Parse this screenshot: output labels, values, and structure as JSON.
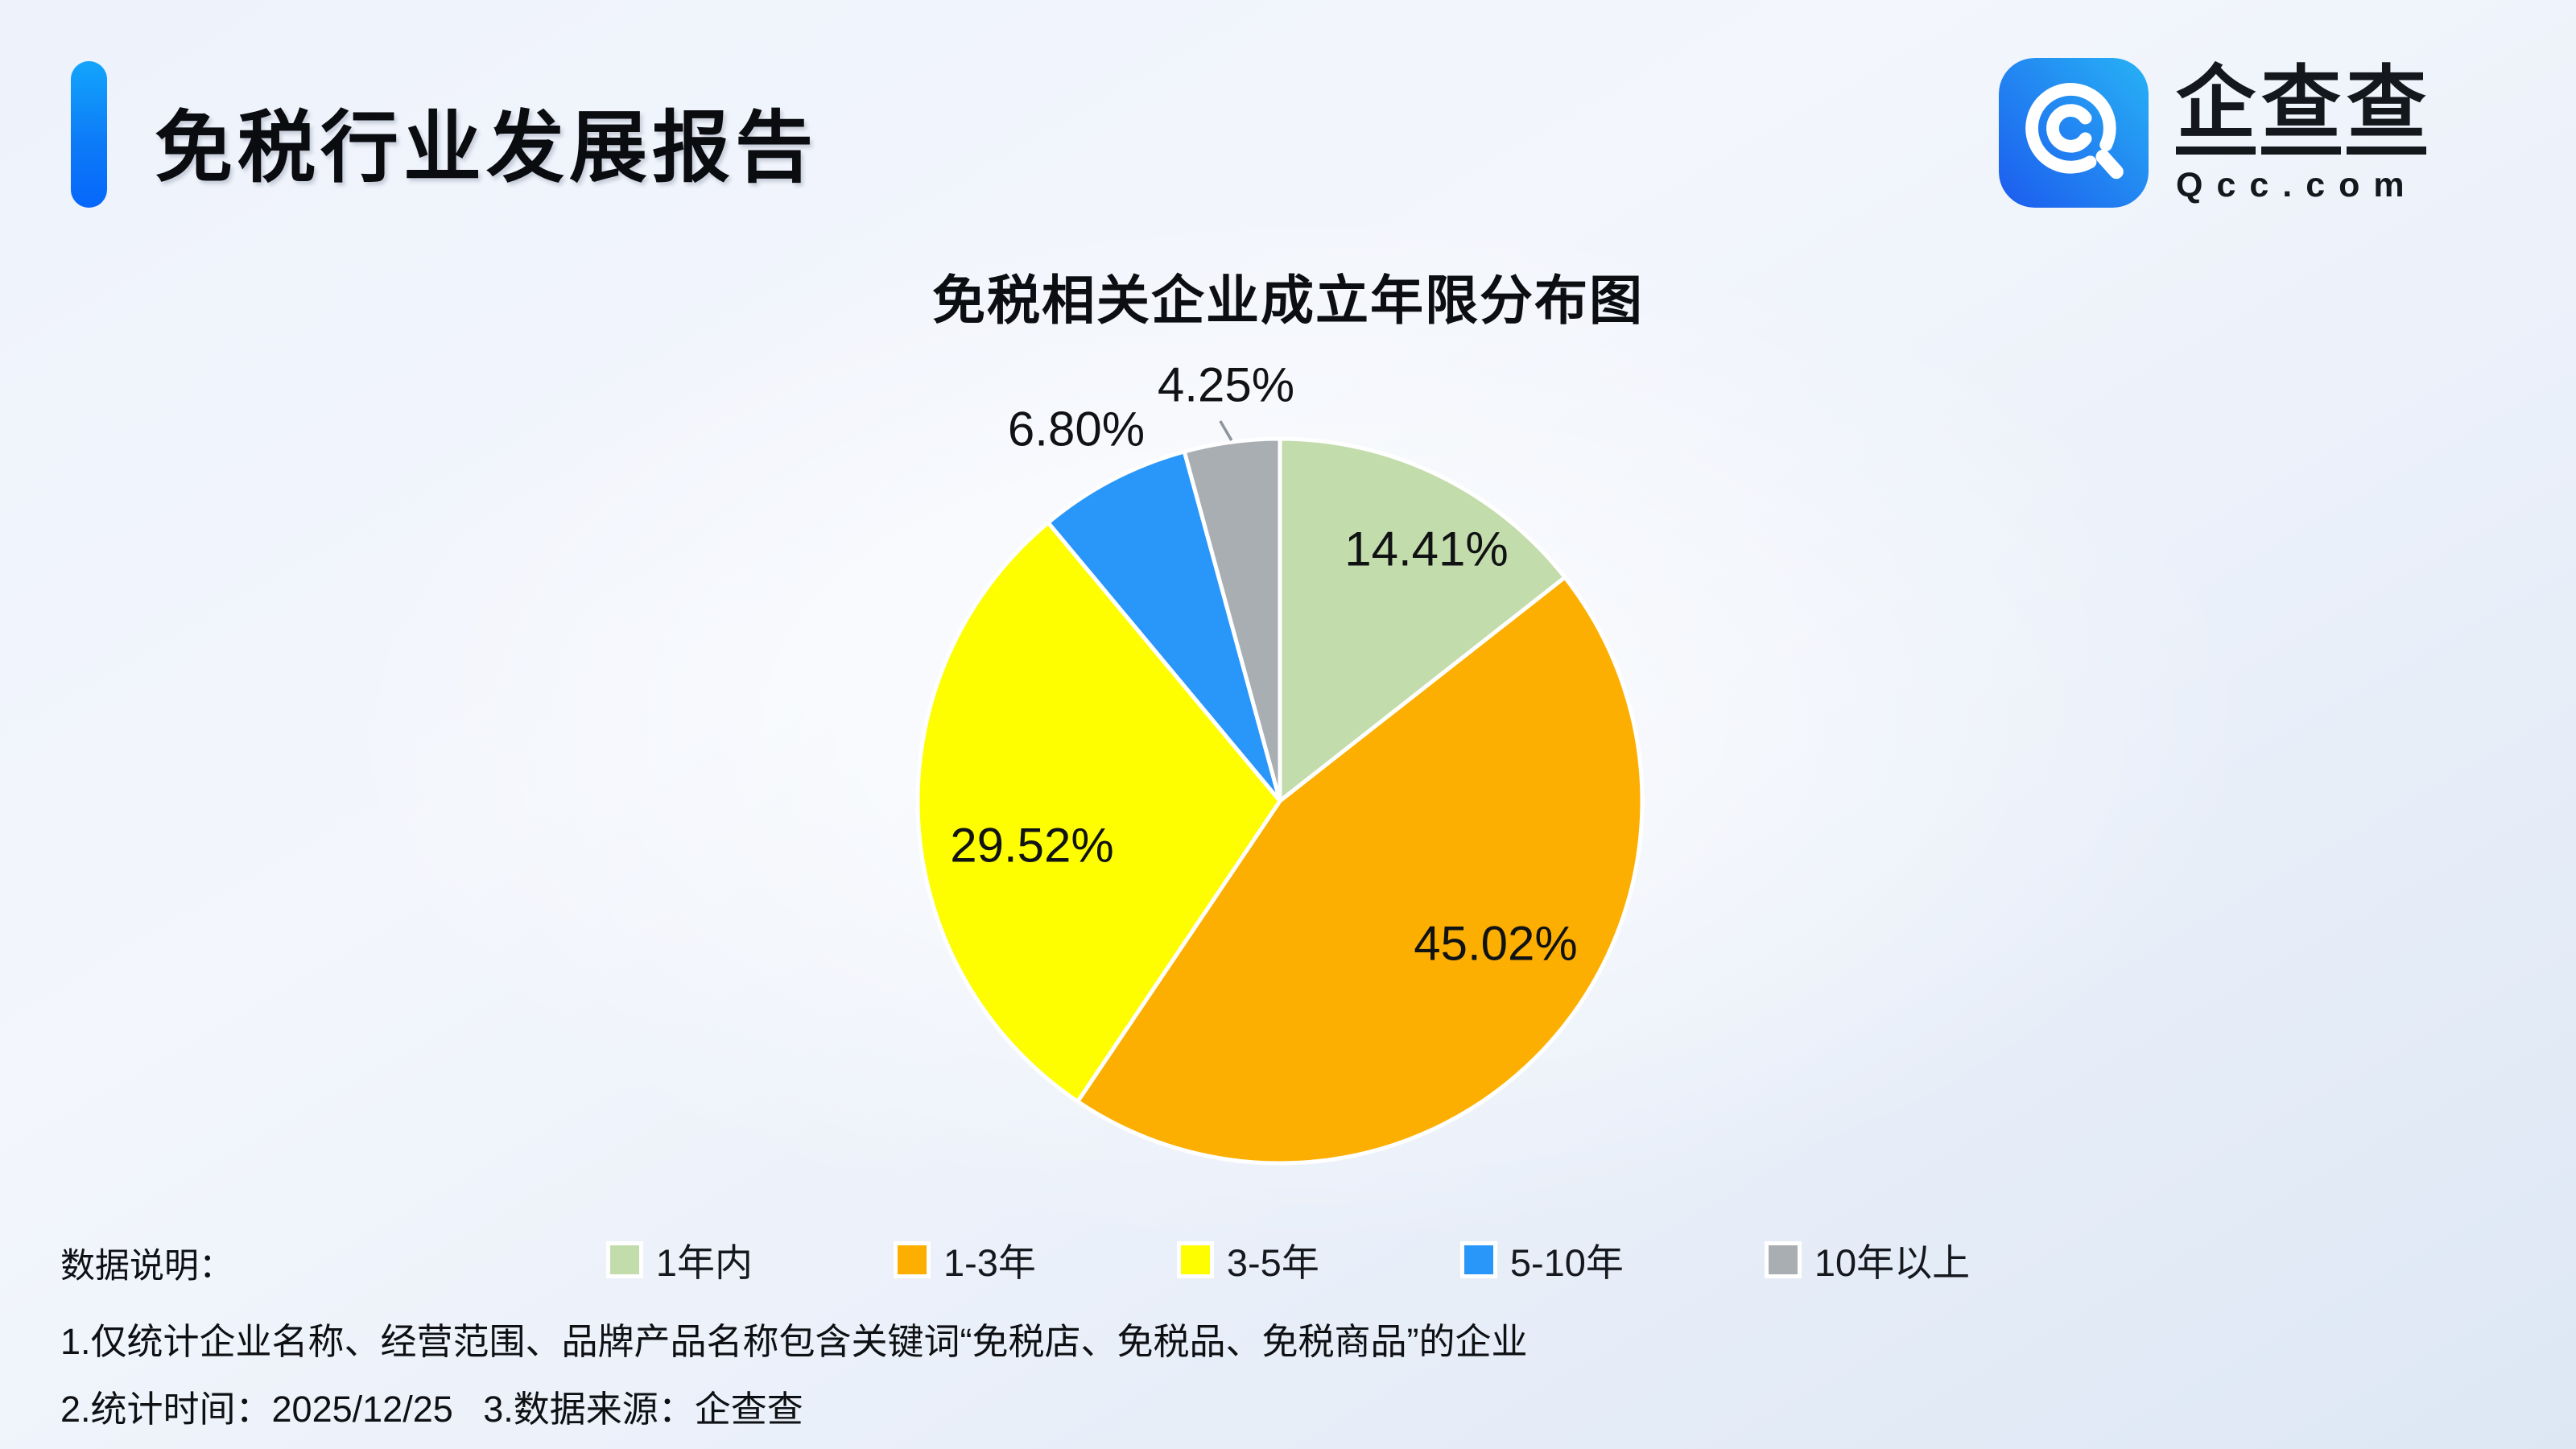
{
  "page": {
    "title": "免税行业发展报告"
  },
  "logo": {
    "icon": "qcc-magnifier-icon",
    "name_chars": [
      "企",
      "查",
      "查"
    ],
    "domain": "Qcc.com",
    "icon_gradient": [
      "#1c5bee",
      "#28b2f5"
    ]
  },
  "chart_data": {
    "type": "pie",
    "title": "免税相关企业成立年限分布图",
    "categories": [
      "1年内",
      "1-3年",
      "3-5年",
      "5-10年",
      "10年以上"
    ],
    "values": [
      14.41,
      45.02,
      29.52,
      6.8,
      4.25
    ],
    "labels": [
      "14.41%",
      "45.02%",
      "29.52%",
      "6.80%",
      "4.25%"
    ],
    "colors": [
      "#c3dcab",
      "#fcaf00",
      "#fefe00",
      "#2997fa",
      "#a9aeb3"
    ],
    "slice_border_color": "#ffffff",
    "start_angle_deg": 0,
    "direction": "clockwise",
    "label_placement": [
      "inside",
      "inside",
      "inside",
      "outside",
      "outside"
    ],
    "legend_position": "bottom",
    "leader_line_color": "#8d949c"
  },
  "notes": {
    "heading": "数据说明：",
    "line1": "1.仅统计企业名称、经营范围、品牌产品名称包含关键词“免税店、免税品、免税商品”的企业",
    "line2": "2.统计时间：2025/12/25   3.数据来源：企查查"
  },
  "theme": {
    "accent_bar_gradient": [
      "#12a5fc",
      "#0667fb"
    ],
    "background": "light-blue-gradient"
  }
}
